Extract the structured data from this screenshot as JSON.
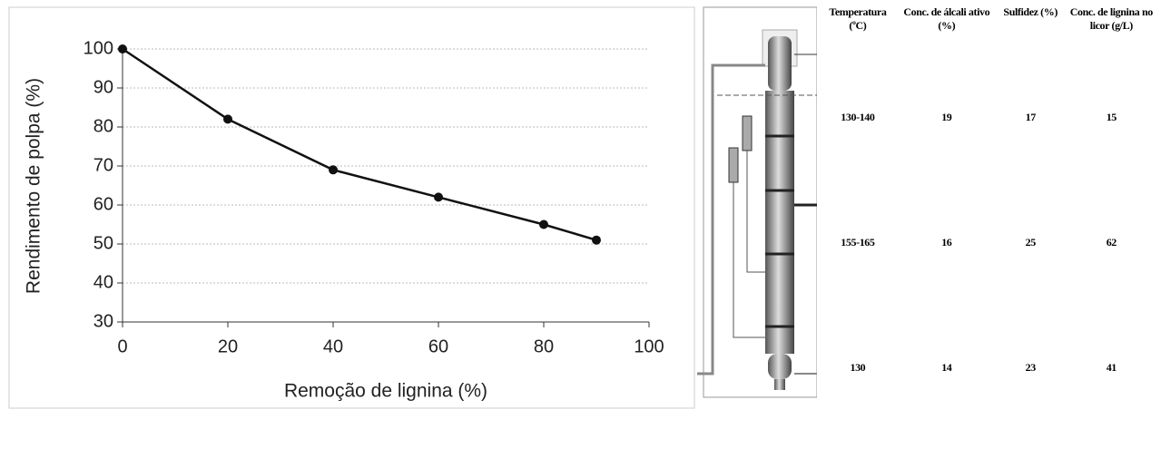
{
  "chart_data": {
    "type": "line",
    "x_label": "Remoção de lignina (%)",
    "y_label": "Rendimento de polpa (%)",
    "x": [
      0,
      20,
      40,
      60,
      80,
      90
    ],
    "values": [
      100,
      82,
      69,
      62,
      55,
      51
    ],
    "color": "#111111",
    "xlim": [
      0,
      100
    ],
    "xticks": [
      0,
      20,
      40,
      60,
      80,
      100
    ],
    "ylim": [
      30,
      100
    ],
    "yticks": [
      30,
      40,
      50,
      60,
      70,
      80,
      90,
      100
    ],
    "grid": true
  },
  "table": {
    "header": [
      "Temperatura (ºC)",
      "Conc. de álcali ativo (%)",
      "Sulfidez (%)",
      "Conc. de lignina no licor (g/L)"
    ],
    "rows": [
      [
        "130-140",
        "19",
        "17",
        "15"
      ],
      [
        "155-165",
        "16",
        "25",
        "62"
      ],
      [
        "130",
        "14",
        "23",
        "41"
      ]
    ]
  }
}
